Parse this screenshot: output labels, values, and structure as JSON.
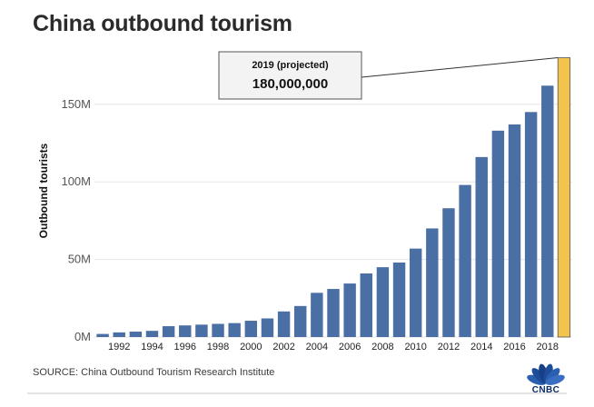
{
  "title": "China outbound tourism",
  "source": "SOURCE: China Outbound Tourism Research Institute",
  "logo_text": "CNBC",
  "chart_data": {
    "type": "bar",
    "title": "China outbound tourism",
    "ylabel": "Outbound tourists",
    "xlabel": "",
    "ylim": [
      0,
      185000000
    ],
    "y_ticks": [
      {
        "value": 0,
        "label": "0M"
      },
      {
        "value": 50000000,
        "label": "50M"
      },
      {
        "value": 100000000,
        "label": "100M"
      },
      {
        "value": 150000000,
        "label": "150M"
      }
    ],
    "x_tick_labels": [
      "1992",
      "1994",
      "1996",
      "1998",
      "2000",
      "2002",
      "2004",
      "2006",
      "2008",
      "2010",
      "2012",
      "2014",
      "2016",
      "2018"
    ],
    "categories": [
      "1991",
      "1992",
      "1993",
      "1994",
      "1995",
      "1996",
      "1997",
      "1998",
      "1999",
      "2000",
      "2001",
      "2002",
      "2003",
      "2004",
      "2005",
      "2006",
      "2007",
      "2008",
      "2009",
      "2010",
      "2011",
      "2012",
      "2013",
      "2014",
      "2015",
      "2016",
      "2017",
      "2018",
      "2019"
    ],
    "values": [
      2000000,
      3000000,
      3500000,
      4000000,
      7000000,
      7500000,
      8000000,
      8500000,
      9000000,
      10500000,
      12000000,
      16500000,
      20000000,
      28500000,
      31000000,
      34500000,
      41000000,
      45000000,
      48000000,
      57000000,
      70000000,
      83000000,
      98000000,
      116000000,
      133000000,
      137000000,
      145000000,
      162000000,
      180000000
    ],
    "bar_colors": {
      "historical": "#4a6fa5",
      "projected": "#f2c44d"
    },
    "annotation": {
      "category": "2019",
      "heading": "2019 (projected)",
      "value_text": "180,000,000"
    },
    "grid": true
  }
}
